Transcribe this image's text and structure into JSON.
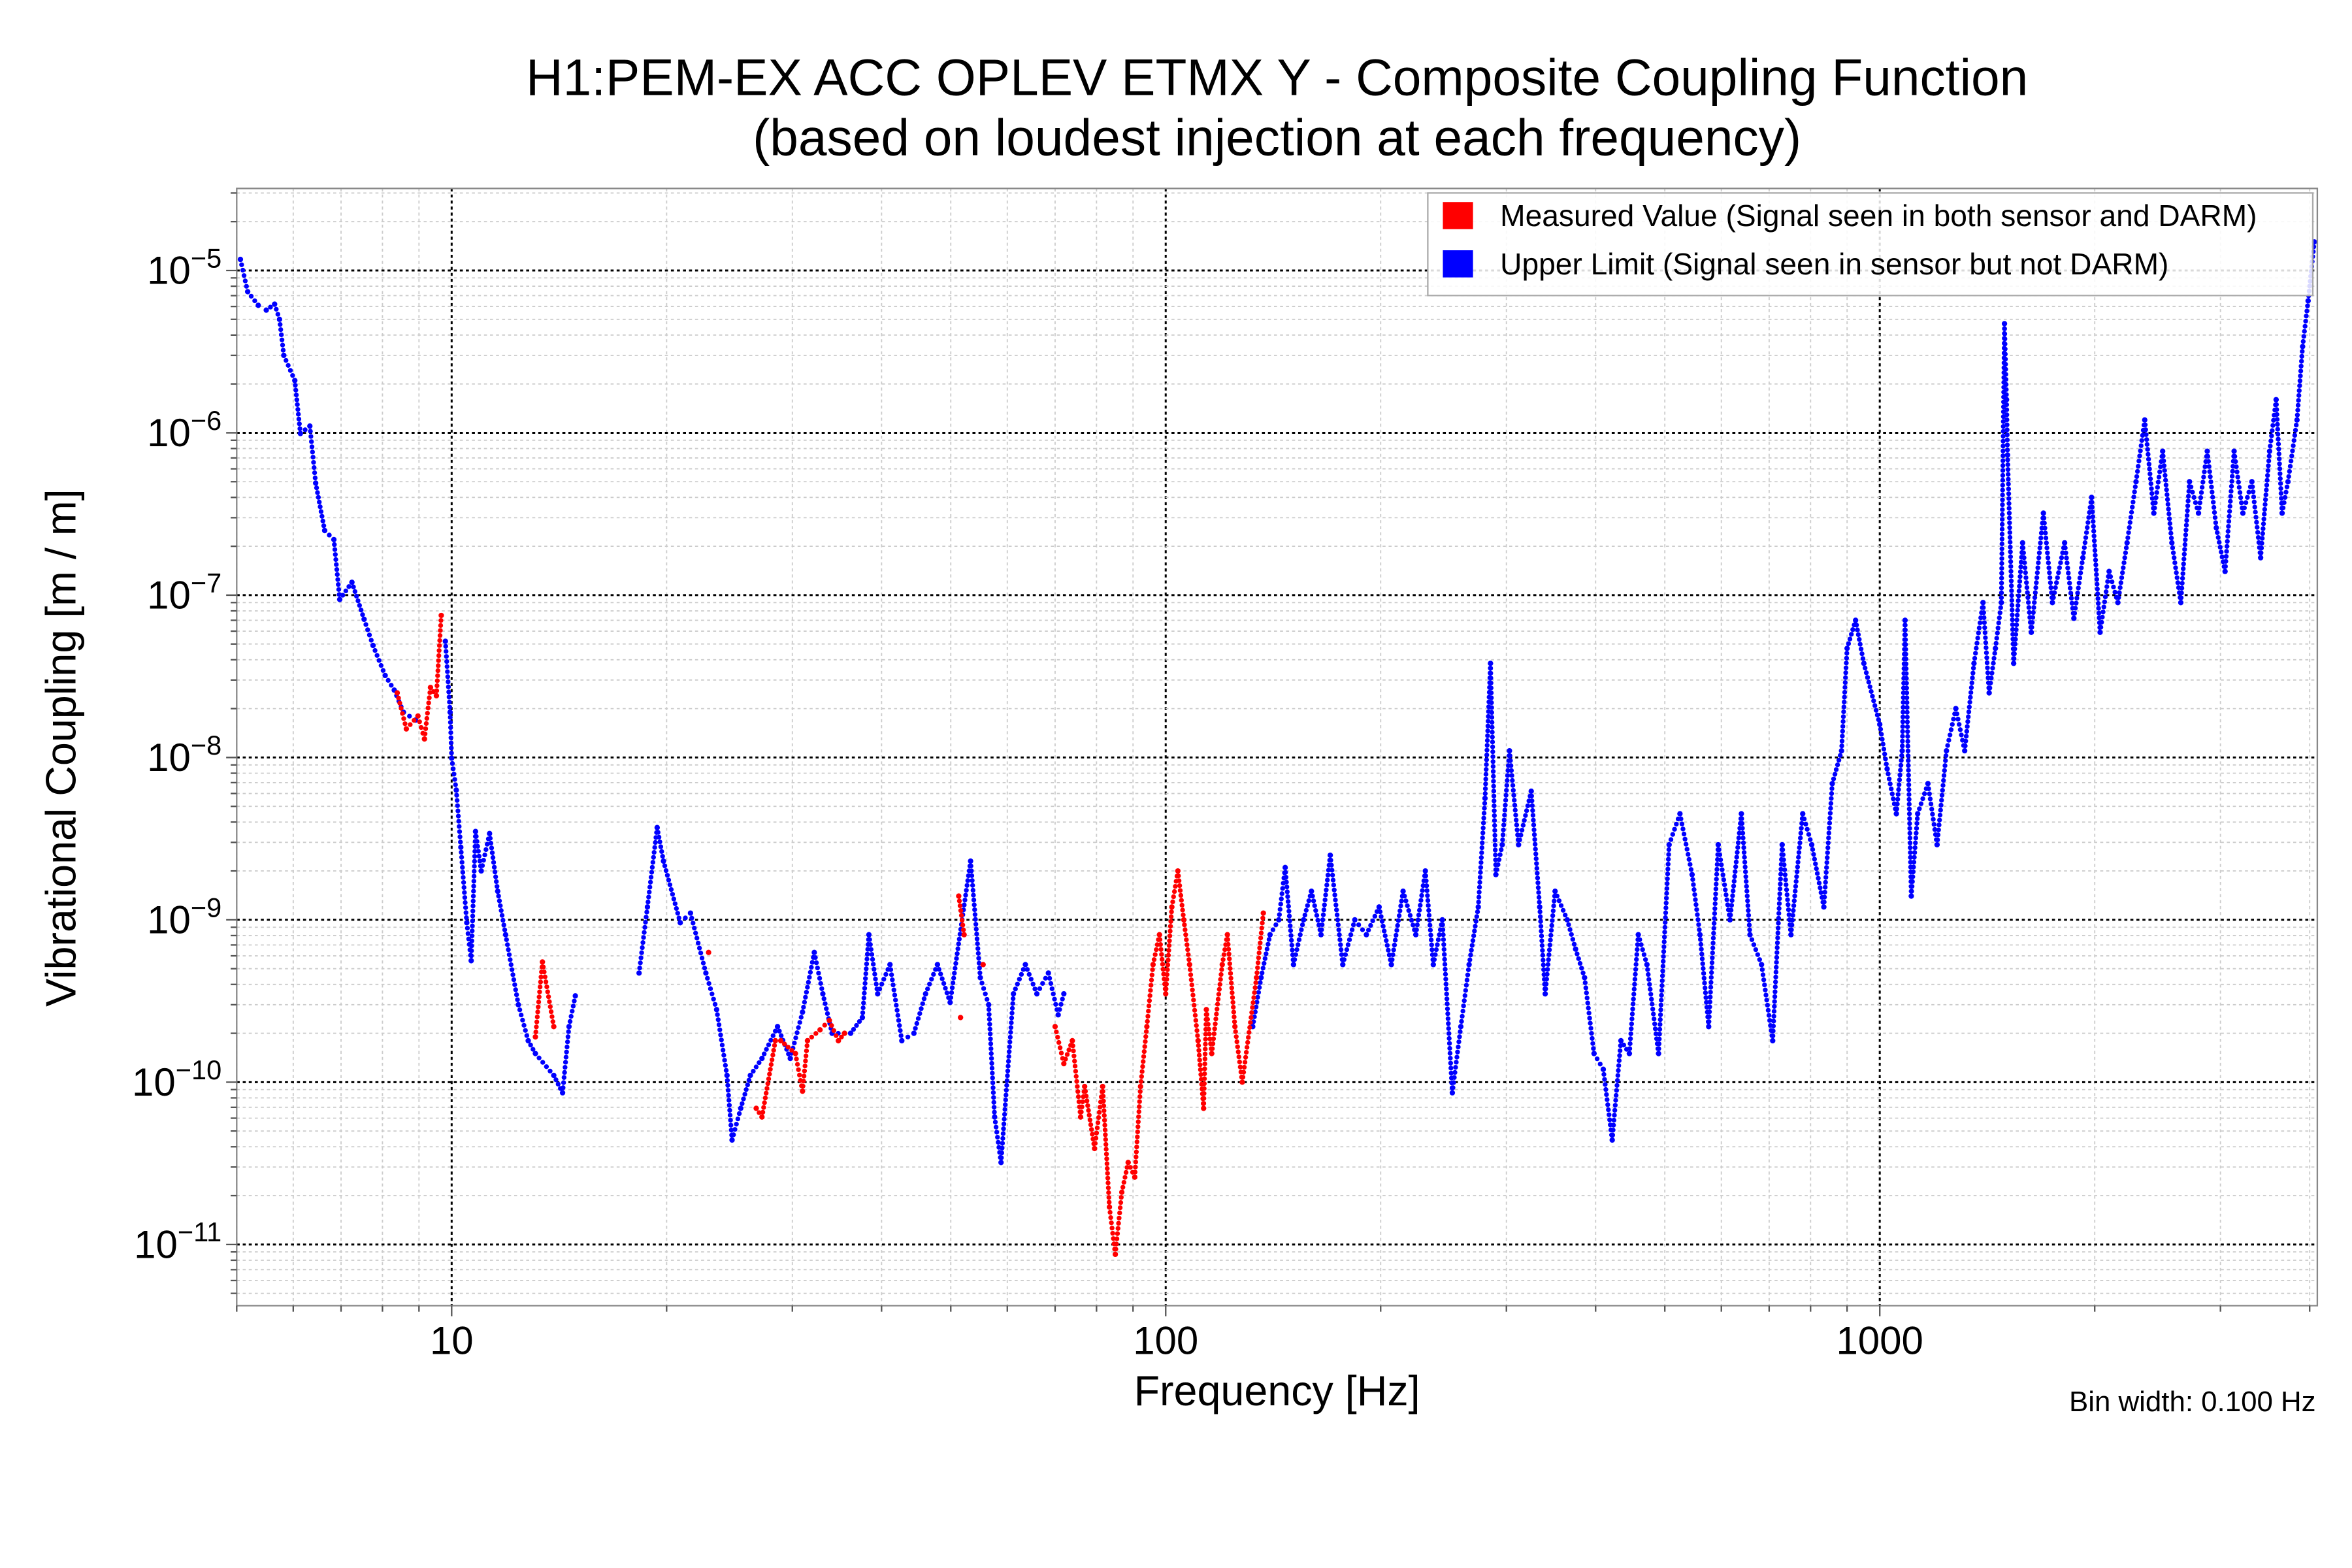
{
  "chart_data": {
    "type": "scatter",
    "title": "H1:PEM-EX ACC OPLEV ETMX Y - Composite Coupling Function",
    "subtitle": "(based on loudest injection at each frequency)",
    "xlabel": "Frequency [Hz]",
    "ylabel": "Vibrational Coupling [m / m]",
    "xscale": "log",
    "yscale": "log",
    "xlim": [
      5,
      4100
    ],
    "ylim": [
      4.2e-12,
      3.2e-05
    ],
    "x_ticks": [
      {
        "value": 10,
        "label": "10"
      },
      {
        "value": 100,
        "label": "100"
      },
      {
        "value": 1000,
        "label": "1000"
      }
    ],
    "y_ticks": [
      {
        "value": 1e-05,
        "base": "10",
        "exp": "−5"
      },
      {
        "value": 1e-06,
        "base": "10",
        "exp": "−6"
      },
      {
        "value": 1e-07,
        "base": "10",
        "exp": "−7"
      },
      {
        "value": 1e-08,
        "base": "10",
        "exp": "−8"
      },
      {
        "value": 1e-09,
        "base": "10",
        "exp": "−9"
      },
      {
        "value": 1e-10,
        "base": "10",
        "exp": "−10"
      },
      {
        "value": 1e-11,
        "base": "10",
        "exp": "−11"
      }
    ],
    "grid": true,
    "legend_position": "top-right",
    "annotation": "Bin width: 0.100 Hz",
    "series": [
      {
        "name": "Measured Value (Signal seen in both sensor and DARM)",
        "color": "#ff0000",
        "points": [
          [
            8.39,
            2.5e-08
          ],
          [
            8.64,
            1.5e-08
          ],
          [
            8.97,
            1.8e-08
          ],
          [
            9.16,
            1.3e-08
          ],
          [
            9.34,
            2.7e-08
          ],
          [
            9.52,
            2.4e-08
          ],
          [
            9.67,
            7.5e-08
          ],
          [
            13.1,
            1.9e-10
          ],
          [
            13.4,
            5.5e-10
          ],
          [
            13.9,
            2.2e-10
          ],
          [
            22.9,
            6.3e-10
          ],
          [
            26.7,
            6.9e-11
          ],
          [
            27.2,
            6.1e-11
          ],
          [
            28.4,
            1.8e-10
          ],
          [
            28.9,
            1.8e-10
          ],
          [
            30.3,
            1.5e-10
          ],
          [
            31,
            8.8e-11
          ],
          [
            31.5,
            1.8e-10
          ],
          [
            32.8,
            2.1e-10
          ],
          [
            33.8,
            2.4e-10
          ],
          [
            34.8,
            1.8e-10
          ],
          [
            35.5,
            2e-10
          ],
          [
            51.3,
            1.4e-09
          ],
          [
            52.2,
            8.1e-10
          ],
          [
            51.6,
            2.5e-10
          ],
          [
            55.5,
            5.3e-10
          ],
          [
            70,
            2.2e-10
          ],
          [
            72,
            1.3e-10
          ],
          [
            74,
            1.8e-10
          ],
          [
            76,
            6.1e-11
          ],
          [
            77,
            9.4e-11
          ],
          [
            79.5,
            3.9e-11
          ],
          [
            81.6,
            9.4e-11
          ],
          [
            83.4,
            1.7e-11
          ],
          [
            85,
            8.7e-12
          ],
          [
            86.8,
            2.1e-11
          ],
          [
            88.6,
            3.2e-11
          ],
          [
            90.5,
            2.6e-11
          ],
          [
            92.2,
            9.4e-11
          ],
          [
            94.1,
            2.2e-10
          ],
          [
            96,
            5.3e-10
          ],
          [
            98,
            8.1e-10
          ],
          [
            100,
            3.5e-10
          ],
          [
            102,
            1.2e-09
          ],
          [
            104,
            2e-09
          ],
          [
            106,
            1e-09
          ],
          [
            108,
            5.3e-10
          ],
          [
            111,
            1.8e-10
          ],
          [
            113,
            6.9e-11
          ],
          [
            114,
            2.8e-10
          ],
          [
            116,
            1.5e-10
          ],
          [
            120,
            5.3e-10
          ],
          [
            122,
            8.1e-10
          ],
          [
            125,
            2.2e-10
          ],
          [
            128,
            1e-10
          ],
          [
            134,
            4.4e-10
          ],
          [
            137,
            1.1e-09
          ]
        ]
      },
      {
        "name": "Upper Limit (Signal seen in sensor but not DARM)",
        "color": "#0000ff",
        "points": [
          [
            5.06,
            1.17e-05
          ],
          [
            5.18,
            7.4e-06
          ],
          [
            5.36,
            6.1e-06
          ],
          [
            5.5,
            5.7e-06
          ],
          [
            5.65,
            6.2e-06
          ],
          [
            5.74,
            5e-06
          ],
          [
            5.82,
            3e-06
          ],
          [
            6.03,
            2.1e-06
          ],
          [
            6.14,
            9.9e-07
          ],
          [
            6.33,
            1.1e-06
          ],
          [
            6.45,
            4.9e-07
          ],
          [
            6.64,
            2.5e-07
          ],
          [
            6.84,
            2.2e-07
          ],
          [
            6.97,
            9.4e-08
          ],
          [
            7.25,
            1.2e-07
          ],
          [
            7.54,
            7.1e-08
          ],
          [
            7.76,
            4.9e-08
          ],
          [
            8.07,
            3.2e-08
          ],
          [
            8.31,
            2.6e-08
          ],
          [
            8.56,
            1.9e-08
          ],
          [
            8.9,
            1.7e-08
          ],
          [
            9.8,
            5.2e-08
          ],
          [
            9.95,
            1.9e-08
          ],
          [
            10,
            9.9e-09
          ],
          [
            10.15,
            6.3e-09
          ],
          [
            10.3,
            2.8e-09
          ],
          [
            10.5,
            9.6e-10
          ],
          [
            10.65,
            5.6e-10
          ],
          [
            10.8,
            3.5e-09
          ],
          [
            11.0,
            2e-09
          ],
          [
            11.3,
            3.4e-09
          ],
          [
            11.6,
            1.5e-09
          ],
          [
            11.9,
            8.1e-10
          ],
          [
            12.4,
            3e-10
          ],
          [
            12.8,
            1.8e-10
          ],
          [
            13.1,
            1.5e-10
          ],
          [
            13.9,
            1.1e-10
          ],
          [
            14.3,
            8.6e-11
          ],
          [
            14.6,
            2.2e-10
          ],
          [
            14.9,
            3.4e-10
          ],
          [
            18.3,
            4.7e-10
          ],
          [
            18.8,
            1.2e-09
          ],
          [
            19.4,
            3.7e-09
          ],
          [
            19.8,
            2.3e-09
          ],
          [
            20.9,
            9.6e-10
          ],
          [
            21.6,
            1.1e-09
          ],
          [
            22.7,
            4.7e-10
          ],
          [
            23.5,
            2.8e-10
          ],
          [
            24.3,
            1.1e-10
          ],
          [
            24.7,
            4.4e-11
          ],
          [
            25.4,
            6.9e-11
          ],
          [
            26.2,
            1.1e-10
          ],
          [
            27.2,
            1.4e-10
          ],
          [
            28.6,
            2.2e-10
          ],
          [
            29.8,
            1.4e-10
          ],
          [
            31,
            2.7e-10
          ],
          [
            32.2,
            6.3e-10
          ],
          [
            33.1,
            3.5e-10
          ],
          [
            34.1,
            2e-10
          ],
          [
            36.2,
            2e-10
          ],
          [
            37.6,
            2.5e-10
          ],
          [
            38.4,
            8.1e-10
          ],
          [
            39.5,
            3.5e-10
          ],
          [
            41.1,
            5.3e-10
          ],
          [
            42.7,
            1.8e-10
          ],
          [
            44.4,
            2e-10
          ],
          [
            46.1,
            3.5e-10
          ],
          [
            47.9,
            5.3e-10
          ],
          [
            49.9,
            3.1e-10
          ],
          [
            53.3,
            2.3e-09
          ],
          [
            55,
            4.4e-10
          ],
          [
            56.5,
            3e-10
          ],
          [
            57.6,
            6.1e-11
          ],
          [
            58.8,
            3.2e-11
          ],
          [
            61.2,
            3.5e-10
          ],
          [
            63.6,
            5.3e-10
          ],
          [
            66.0,
            3.5e-10
          ],
          [
            68.5,
            4.7e-10
          ],
          [
            70.7,
            2.6e-10
          ],
          [
            72,
            3.5e-10
          ],
          [
            132.4,
            2.2e-10
          ],
          [
            136,
            4.4e-10
          ],
          [
            140,
            8.1e-10
          ],
          [
            144,
            1e-09
          ],
          [
            147,
            2.1e-09
          ],
          [
            151,
            5.3e-10
          ],
          [
            156,
            1e-09
          ],
          [
            160,
            1.5e-09
          ],
          [
            165,
            8.1e-10
          ],
          [
            170,
            2.5e-09
          ],
          [
            177,
            5.3e-10
          ],
          [
            184,
            1e-09
          ],
          [
            191,
            8.1e-10
          ],
          [
            199,
            1.2e-09
          ],
          [
            207,
            5.3e-10
          ],
          [
            215,
            1.5e-09
          ],
          [
            224,
            8.1e-10
          ],
          [
            231,
            2e-09
          ],
          [
            237,
            5.3e-10
          ],
          [
            244,
            1e-09
          ],
          [
            252,
            8.6e-11
          ],
          [
            259,
            2.2e-10
          ],
          [
            266,
            5.3e-10
          ],
          [
            274,
            1.2e-09
          ],
          [
            280,
            5.6e-09
          ],
          [
            285,
            3.8e-08
          ],
          [
            290,
            1.9e-09
          ],
          [
            296,
            2.9e-09
          ],
          [
            303,
            1.1e-08
          ],
          [
            312,
            2.9e-09
          ],
          [
            325,
            6.2e-09
          ],
          [
            334,
            1.2e-09
          ],
          [
            340,
            3.5e-10
          ],
          [
            351,
            1.5e-09
          ],
          [
            365,
            1e-09
          ],
          [
            375,
            6.6e-10
          ],
          [
            386,
            4.4e-10
          ],
          [
            398,
            1.5e-10
          ],
          [
            410,
            1.2e-10
          ],
          [
            422,
            4.4e-11
          ],
          [
            434,
            1.8e-10
          ],
          [
            446,
            1.5e-10
          ],
          [
            459,
            8.1e-10
          ],
          [
            472,
            5.3e-10
          ],
          [
            490,
            1.5e-10
          ],
          [
            507,
            2.9e-09
          ],
          [
            525,
            4.5e-09
          ],
          [
            546,
            1.9e-09
          ],
          [
            560,
            8.1e-10
          ],
          [
            576,
            2.2e-10
          ],
          [
            594,
            2.9e-09
          ],
          [
            617,
            1e-09
          ],
          [
            640,
            4.5e-09
          ],
          [
            658,
            8.1e-10
          ],
          [
            683,
            5.3e-10
          ],
          [
            708,
            1.8e-10
          ],
          [
            730,
            2.9e-09
          ],
          [
            751,
            8.1e-10
          ],
          [
            780,
            4.5e-09
          ],
          [
            803,
            2.9e-09
          ],
          [
            835,
            1.2e-09
          ],
          [
            858,
            6.9e-09
          ],
          [
            884,
            1.1e-08
          ],
          [
            900,
            4.7e-08
          ],
          [
            925,
            7e-08
          ],
          [
            950,
            3.8e-08
          ],
          [
            1000,
            1.6e-08
          ],
          [
            1024,
            8.5e-09
          ],
          [
            1055,
            4.5e-09
          ],
          [
            1075,
            1.1e-08
          ],
          [
            1085,
            7e-08
          ],
          [
            1107,
            1.4e-09
          ],
          [
            1130,
            4.5e-09
          ],
          [
            1168,
            6.9e-09
          ],
          [
            1203,
            2.9e-09
          ],
          [
            1240,
            1.1e-08
          ],
          [
            1278,
            2e-08
          ],
          [
            1315,
            1.1e-08
          ],
          [
            1355,
            3.8e-08
          ],
          [
            1395,
            9e-08
          ],
          [
            1423,
            2.5e-08
          ],
          [
            1452,
            4.7e-08
          ],
          [
            1480,
            9e-08
          ],
          [
            1495,
            4.7e-06
          ],
          [
            1505,
            1.6e-06
          ],
          [
            1510,
            7.3e-07
          ],
          [
            1540,
            3.8e-08
          ],
          [
            1585,
            2.1e-07
          ],
          [
            1630,
            5.9e-08
          ],
          [
            1695,
            3.2e-07
          ],
          [
            1745,
            9e-08
          ],
          [
            1815,
            2.1e-07
          ],
          [
            1870,
            7.2e-08
          ],
          [
            1925,
            1.7e-07
          ],
          [
            1980,
            4e-07
          ],
          [
            2035,
            5.9e-08
          ],
          [
            2095,
            1.4e-07
          ],
          [
            2155,
            9e-08
          ],
          [
            2220,
            2.1e-07
          ],
          [
            2285,
            5e-07
          ],
          [
            2350,
            1.2e-06
          ],
          [
            2420,
            3.2e-07
          ],
          [
            2490,
            7.7e-07
          ],
          [
            2565,
            2.1e-07
          ],
          [
            2640,
            9e-08
          ],
          [
            2715,
            5e-07
          ],
          [
            2795,
            3.2e-07
          ],
          [
            2875,
            7.7e-07
          ],
          [
            2960,
            2.6e-07
          ],
          [
            3045,
            1.4e-07
          ],
          [
            3135,
            7.7e-07
          ],
          [
            3225,
            3.2e-07
          ],
          [
            3320,
            5e-07
          ],
          [
            3415,
            1.7e-07
          ],
          [
            3515,
            7.7e-07
          ],
          [
            3590,
            1.6e-06
          ],
          [
            3660,
            3.2e-07
          ],
          [
            3730,
            5e-07
          ],
          [
            3840,
            1.2e-06
          ],
          [
            3910,
            3.4e-06
          ],
          [
            3980,
            6.5e-06
          ],
          [
            4060,
            1.5e-05
          ]
        ]
      }
    ]
  }
}
